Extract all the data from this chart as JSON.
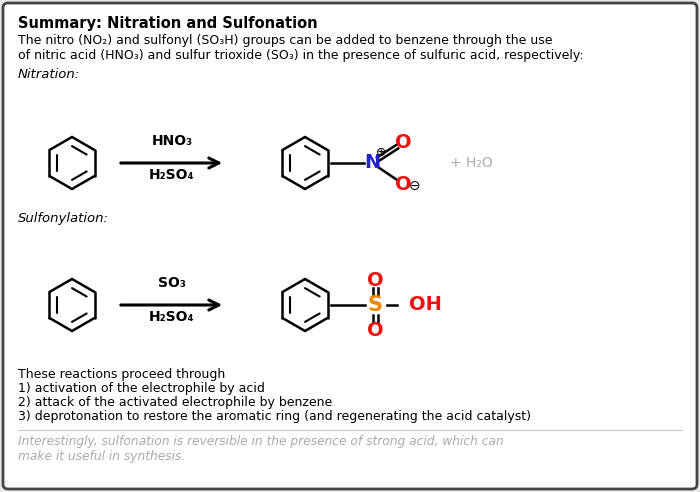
{
  "title": "Summary: Nitration and Sulfonation",
  "bg_color": "#e8e8e8",
  "card_color": "#ffffff",
  "border_color": "#444444",
  "text_color": "#000000",
  "gray_text": "#aaaaaa",
  "red_color": "#ee1111",
  "blue_color": "#2222cc",
  "orange_color": "#ee8800",
  "intro_line1": "The nitro (NO₂) and sulfonyl (SO₃H) groups can be added to benzene through the use",
  "intro_line2": "of nitric acid (HNO₃) and sulfur trioxide (SO₃) in the presence of sulfuric acid, respectively:",
  "nitration_label": "Nitration:",
  "sulfonylation_label": "Sulfonylation:",
  "nitration_reagent1": "HNO₃",
  "nitration_reagent2": "H₂SO₄",
  "sulfonylation_reagent1": "SO₃",
  "sulfonylation_reagent2": "H₂SO₄",
  "plus_water": "+ H₂O",
  "footer_line0": "These reactions proceed through",
  "footer_line1": "1) activation of the electrophile by acid",
  "footer_line2": "2) attack of the activated electrophile by benzene",
  "footer_line3": "3) deprotonation to restore the aromatic ring (and regenerating the acid catalyst)",
  "italic_line1": "Interestingly, sulfonation is reversible in the presence of strong acid, which can",
  "italic_line2": "make it useful in synthesis."
}
